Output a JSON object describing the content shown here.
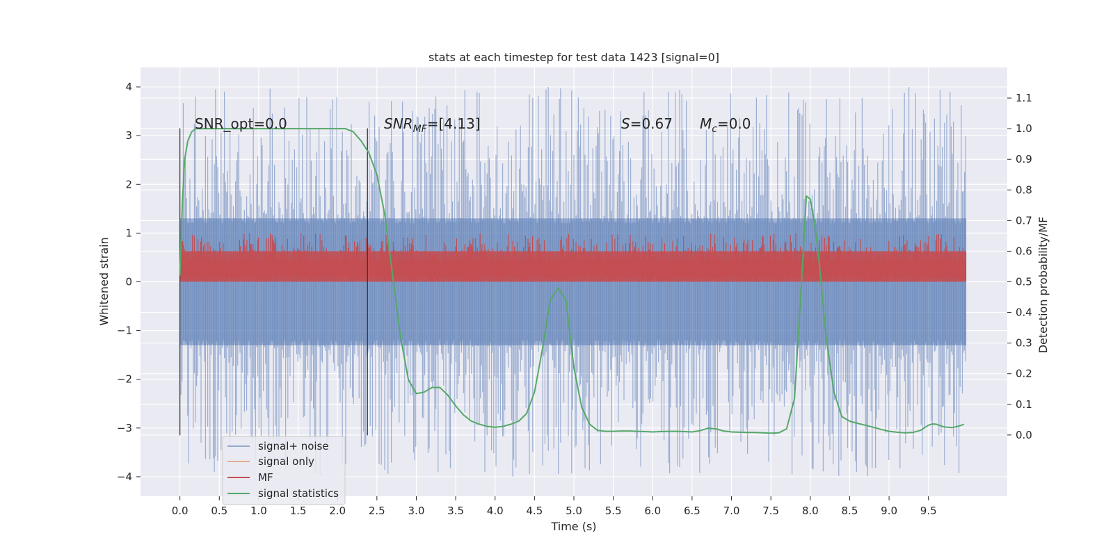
{
  "chart_data": {
    "type": "line",
    "title": "stats at each timestep for test data 1423 [signal=0]",
    "xlabel": "Time (s)",
    "ylabel_left": "Whitened strain",
    "ylabel_right": "Detection probability/MF",
    "xlim": [
      -0.5,
      10.5
    ],
    "ylim_left": [
      -4.4,
      4.4
    ],
    "ylim_right": [
      -0.2,
      1.2
    ],
    "x_ticks": [
      "0.0",
      "0.5",
      "1.0",
      "1.5",
      "2.0",
      "2.5",
      "3.0",
      "3.5",
      "4.0",
      "4.5",
      "5.0",
      "5.5",
      "6.0",
      "6.5",
      "7.0",
      "7.5",
      "8.0",
      "8.5",
      "9.0",
      "9.5"
    ],
    "y_ticks_left": [
      "4",
      "3",
      "2",
      "1",
      "0",
      "−1",
      "−2",
      "−3",
      "−4"
    ],
    "y_ticks_right": [
      "1.1",
      "1.0",
      "0.9",
      "0.8",
      "0.7",
      "0.6",
      "0.5",
      "0.4",
      "0.3",
      "0.2",
      "0.1",
      "0.0"
    ],
    "grid": true,
    "legend_position": "lower-left",
    "annotations": {
      "snr_opt": "SNR_opt=0.0",
      "snr_mf_main": "SNR",
      "snr_mf_sub": "MF",
      "snr_mf_value": "=[4.13]",
      "s_label": "S",
      "s_value": "=0.67",
      "mc_label": "M",
      "mc_sub": "c",
      "mc_value": "=0.0"
    },
    "vlines": [
      {
        "x": 0.0,
        "y_range": [
          -3.15,
          3.15
        ]
      },
      {
        "x": 2.38,
        "y_range": [
          -3.15,
          3.15
        ]
      }
    ],
    "series": [
      {
        "name": "signal+ noise",
        "axis": "left",
        "color": "#4c72b0",
        "x_range": [
          0.0,
          9.98
        ],
        "band": [
          -1.3,
          1.3
        ],
        "peak_max": 4.0,
        "peak_min": -4.0
      },
      {
        "name": "signal only",
        "axis": "left",
        "color": "#dd8452",
        "values": 0
      },
      {
        "name": "MF",
        "axis": "right",
        "color": "#c44e52",
        "x_range": [
          0.0,
          9.98
        ],
        "band": [
          0.5,
          0.6
        ],
        "peak_max": 0.66
      },
      {
        "name": "signal statistics",
        "axis": "right",
        "color": "#55a868",
        "x": [
          0.0,
          0.03,
          0.06,
          0.1,
          0.15,
          0.2,
          0.3,
          0.5,
          1.0,
          1.5,
          2.0,
          2.1,
          2.2,
          2.3,
          2.4,
          2.5,
          2.6,
          2.7,
          2.8,
          2.9,
          3.0,
          3.1,
          3.2,
          3.3,
          3.4,
          3.5,
          3.6,
          3.7,
          3.8,
          3.9,
          4.0,
          4.1,
          4.2,
          4.3,
          4.4,
          4.5,
          4.6,
          4.7,
          4.8,
          4.9,
          5.0,
          5.1,
          5.2,
          5.3,
          5.4,
          5.5,
          5.6,
          5.7,
          5.8,
          5.9,
          6.0,
          6.1,
          6.2,
          6.3,
          6.4,
          6.5,
          6.6,
          6.7,
          6.8,
          6.9,
          7.0,
          7.1,
          7.2,
          7.3,
          7.4,
          7.5,
          7.6,
          7.7,
          7.8,
          7.9,
          7.95,
          8.0,
          8.05,
          8.1,
          8.2,
          8.3,
          8.4,
          8.5,
          8.6,
          8.7,
          8.8,
          8.9,
          9.0,
          9.1,
          9.2,
          9.3,
          9.4,
          9.5,
          9.55,
          9.6,
          9.7,
          9.8,
          9.9,
          9.95
        ],
        "values": [
          0.52,
          0.75,
          0.9,
          0.96,
          0.99,
          1.0,
          1.0,
          1.0,
          1.0,
          1.0,
          1.0,
          1.0,
          0.99,
          0.96,
          0.92,
          0.85,
          0.72,
          0.52,
          0.32,
          0.18,
          0.135,
          0.14,
          0.155,
          0.155,
          0.13,
          0.095,
          0.065,
          0.045,
          0.035,
          0.028,
          0.025,
          0.028,
          0.035,
          0.045,
          0.07,
          0.14,
          0.28,
          0.44,
          0.48,
          0.44,
          0.22,
          0.09,
          0.035,
          0.015,
          0.012,
          0.012,
          0.013,
          0.013,
          0.012,
          0.011,
          0.01,
          0.011,
          0.012,
          0.012,
          0.011,
          0.01,
          0.014,
          0.022,
          0.02,
          0.013,
          0.01,
          0.009,
          0.008,
          0.008,
          0.007,
          0.006,
          0.007,
          0.02,
          0.12,
          0.55,
          0.78,
          0.77,
          0.7,
          0.6,
          0.32,
          0.14,
          0.06,
          0.045,
          0.038,
          0.032,
          0.025,
          0.018,
          0.012,
          0.009,
          0.007,
          0.008,
          0.015,
          0.032,
          0.036,
          0.035,
          0.026,
          0.024,
          0.03,
          0.035
        ]
      }
    ]
  }
}
